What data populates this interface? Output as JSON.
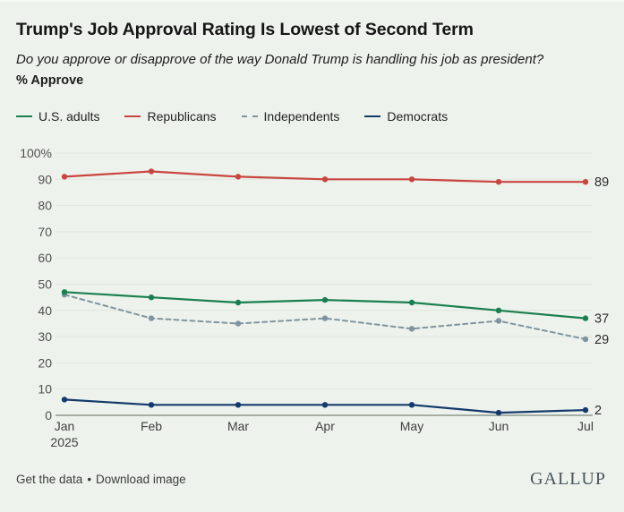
{
  "header": {
    "title": "Trump's Job Approval Rating Is Lowest of Second Term",
    "subtitle": "Do you approve or disapprove of the way Donald Trump is handling his job as president?",
    "measure_label": "% Approve"
  },
  "legend": [
    {
      "label": "U.S. adults",
      "color": "#1a7f4f",
      "dashed": false
    },
    {
      "label": "Republicans",
      "color": "#c94540",
      "dashed": false
    },
    {
      "label": "Independents",
      "color": "#8094a0",
      "dashed": true
    },
    {
      "label": "Democrats",
      "color": "#143a6d",
      "dashed": false
    }
  ],
  "chart_data": {
    "type": "line",
    "title": "Trump's Job Approval Rating Is Lowest of Second Term",
    "ylabel": "% Approve",
    "xlabel": "",
    "categories": [
      "Jan 2025",
      "Feb",
      "Mar",
      "Apr",
      "May",
      "Jun",
      "Jul"
    ],
    "x_tick_labels": [
      [
        "Jan",
        "2025"
      ],
      [
        "Feb"
      ],
      [
        "Mar"
      ],
      [
        "Apr"
      ],
      [
        "May"
      ],
      [
        "Jun"
      ],
      [
        "Jul"
      ]
    ],
    "series": [
      {
        "name": "U.S. adults",
        "color": "#1a7f4f",
        "style": "solid",
        "values": [
          47,
          45,
          43,
          44,
          43,
          40,
          37
        ],
        "end_label": "37"
      },
      {
        "name": "Republicans",
        "color": "#c94540",
        "style": "solid",
        "values": [
          91,
          93,
          91,
          90,
          90,
          89,
          89
        ],
        "end_label": "89"
      },
      {
        "name": "Independents",
        "color": "#8094a0",
        "style": "dashed",
        "values": [
          46,
          37,
          35,
          37,
          33,
          36,
          29
        ],
        "end_label": "29"
      },
      {
        "name": "Democrats",
        "color": "#143a6d",
        "style": "solid",
        "values": [
          6,
          4,
          4,
          4,
          4,
          1,
          2
        ],
        "end_label": "2"
      }
    ],
    "ylim": [
      0,
      100
    ],
    "y_ticks": [
      0,
      10,
      20,
      30,
      40,
      50,
      60,
      70,
      80,
      90,
      100
    ],
    "y_top_tick_label": "100%",
    "grid": true,
    "legend_position": "top",
    "colors": {
      "background": "#edf3ec",
      "gridline": "#dfe6dd",
      "axis_line": "#7c857a"
    }
  },
  "footer": {
    "links": [
      "Get the data",
      "Download image"
    ],
    "separator": "•",
    "brand": "GALLUP"
  }
}
